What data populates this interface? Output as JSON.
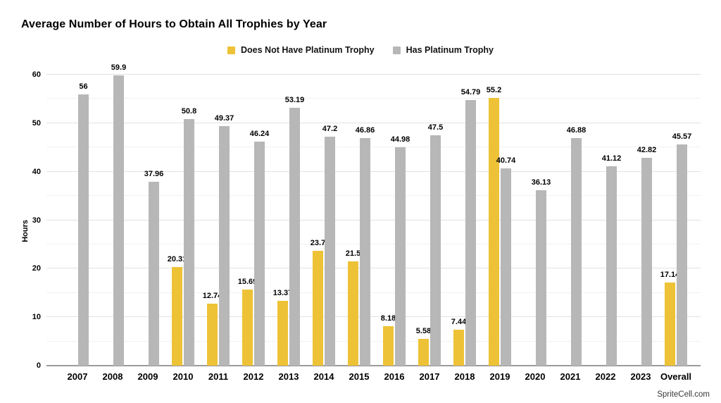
{
  "title": "Average Number of Hours to Obtain All Trophies by Year",
  "footer": "SpriteCell.com",
  "colors": {
    "no_platinum": "#EEC236",
    "has_platinum": "#B7B7B7",
    "grid_major": "#e2e2e2",
    "grid_minor": "#f1f1f1",
    "baseline": "#9b9b9b"
  },
  "chart_data": {
    "type": "bar",
    "title": "Average Number of Hours to Obtain All Trophies by Year",
    "xlabel": "",
    "ylabel": "Hours",
    "ylim": [
      0,
      60
    ],
    "y_major_ticks": [
      0,
      10,
      20,
      30,
      40,
      50,
      60
    ],
    "y_minor_step": 5,
    "grid": true,
    "legend_position": "top-center",
    "value_labels": true,
    "categories": [
      "2007",
      "2008",
      "2009",
      "2010",
      "2011",
      "2012",
      "2013",
      "2014",
      "2015",
      "2016",
      "2017",
      "2018",
      "2019",
      "2020",
      "2021",
      "2022",
      "2023",
      "Overall"
    ],
    "series": [
      {
        "name": "Does Not Have Platinum Trophy",
        "color": "#EEC236",
        "values": [
          null,
          null,
          null,
          20.31,
          12.74,
          15.69,
          13.37,
          23.7,
          21.5,
          8.18,
          5.58,
          7.44,
          55.2,
          null,
          null,
          null,
          null,
          17.14
        ],
        "labels": [
          null,
          null,
          null,
          "20.31",
          "12.74",
          "15.69",
          "13.37",
          "23.7",
          "21.5",
          "8.18",
          "5.58",
          "7.44",
          "55.2",
          null,
          null,
          null,
          null,
          "17.14"
        ]
      },
      {
        "name": "Has Platinum Trophy",
        "color": "#B7B7B7",
        "values": [
          56,
          59.9,
          37.96,
          50.8,
          49.37,
          46.24,
          53.19,
          47.2,
          46.86,
          44.98,
          47.5,
          54.79,
          40.74,
          36.13,
          46.88,
          41.12,
          42.82,
          45.57
        ],
        "labels": [
          "56",
          "59.9",
          "37.96",
          "50.8",
          "49.37",
          "46.24",
          "53.19",
          "47.2",
          "46.86",
          "44.98",
          "47.5",
          "54.79",
          "40.74",
          "36.13",
          "46.88",
          "41.12",
          "42.82",
          "45.57"
        ]
      }
    ]
  }
}
